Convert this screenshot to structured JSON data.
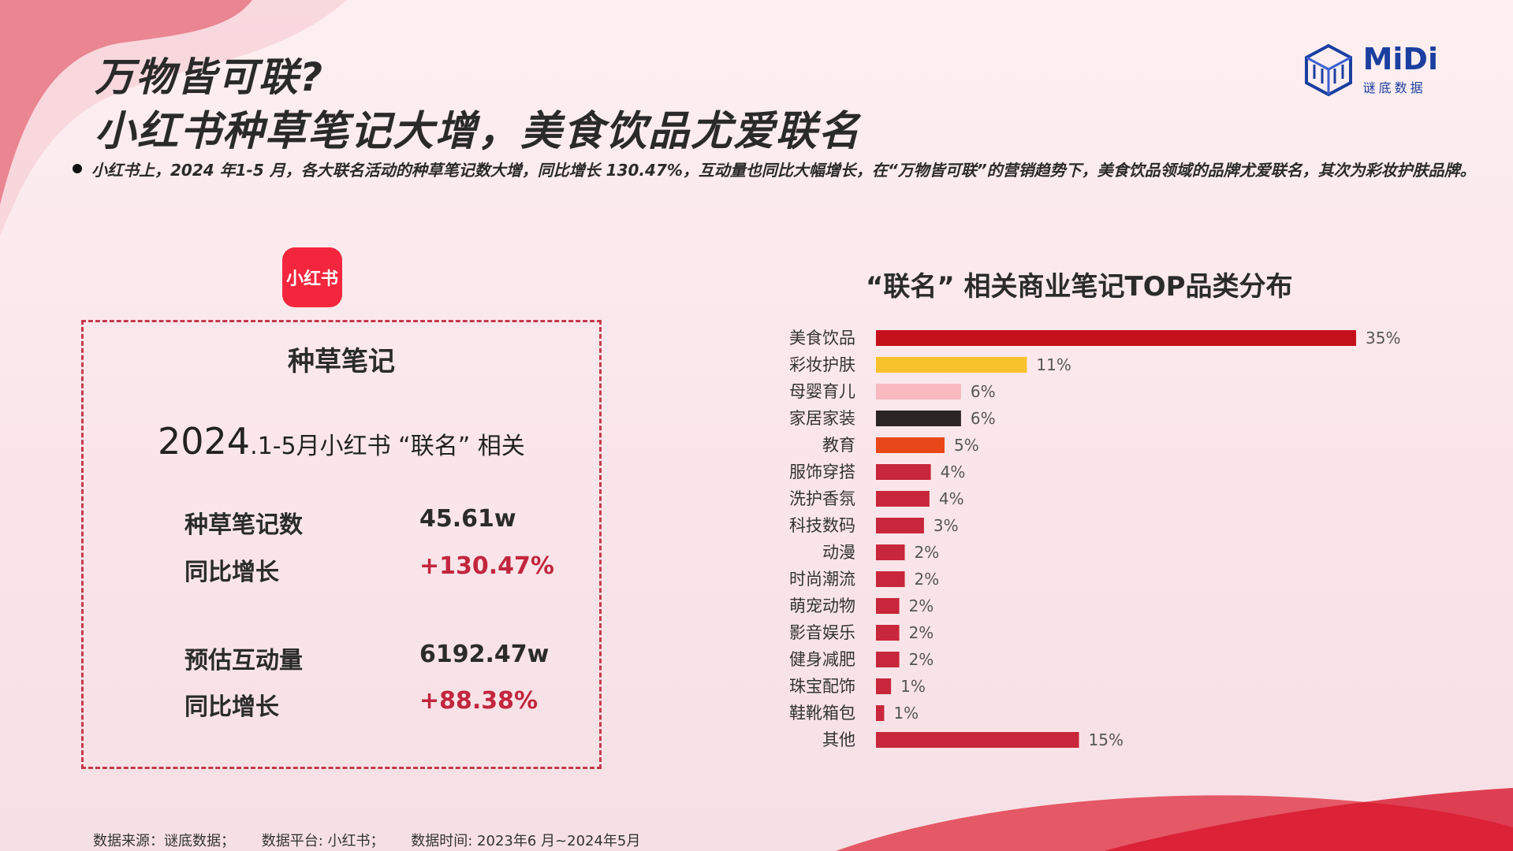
{
  "title": {
    "line1": "万物皆可联?",
    "line2": "小红书种草笔记大增，美食饮品尤爱联名"
  },
  "brand": {
    "name": "MiDi",
    "sub": "谜底数据",
    "color": "#1a3fa0"
  },
  "bullet": "小红书上，2024 年1-5 月，各大联名活动的种草笔记数大增，同比增长 130.47%，互动量也同比大幅增长，在“万物皆可联”的营销趋势下，美食饮品领域的品牌尤爱联名，其次为彩妆护肤品牌。",
  "platform_logo": "小红书",
  "card": {
    "title": "种草笔记",
    "subtitle_year": "2024",
    "subtitle_rest": ".1-5月小红书 “联名” 相关",
    "stats": [
      {
        "label": "种草笔记数",
        "value": "45.61w"
      },
      {
        "label": "同比增长",
        "value": "+130.47%"
      },
      {
        "label": "预估互动量",
        "value": "6192.47w"
      },
      {
        "label": "同比增长",
        "value": "+88.38%"
      }
    ]
  },
  "chart_data": {
    "type": "bar",
    "orientation": "horizontal",
    "title": "“联名” 相关商业笔记TOP品类分布",
    "categories": [
      "美食饮品",
      "彩妆护肤",
      "母婴育儿",
      "家居家装",
      "教育",
      "服饰穿搭",
      "洗护香氛",
      "科技数码",
      "动漫",
      "时尚潮流",
      "萌宠动物",
      "影音娱乐",
      "健身减肥",
      "珠宝配饰",
      "鞋靴箱包",
      "其他"
    ],
    "values": [
      35,
      11,
      6,
      6,
      5,
      4,
      4,
      3,
      2,
      2,
      2,
      2,
      2,
      1,
      1,
      15
    ],
    "labels": [
      "35%",
      "11%",
      "6%",
      "6%",
      "5%",
      "4%",
      "4%",
      "3%",
      "2%",
      "2%",
      "2%",
      "2%",
      "2%",
      "1%",
      "1%",
      "15%"
    ],
    "bar_lengths": [
      35,
      11,
      6.2,
      6.2,
      5,
      4,
      3.9,
      3.5,
      2.1,
      2.1,
      1.7,
      1.7,
      1.7,
      1.1,
      0.6,
      14.8
    ],
    "colors": [
      "#c4101a",
      "#f8c22c",
      "#f9b9c1",
      "#2b2424",
      "#e8471a",
      "#c8263a",
      "#c8263a",
      "#c8263a",
      "#c8263a",
      "#c8263a",
      "#c8263a",
      "#c8263a",
      "#c8263a",
      "#c8263a",
      "#c8263a",
      "#c8263a"
    ]
  },
  "footer": {
    "source": "数据来源：谜底数据；",
    "platform": "数据平台: 小红书；",
    "time": "数据时间:  2023年6 月~2024年5月"
  }
}
